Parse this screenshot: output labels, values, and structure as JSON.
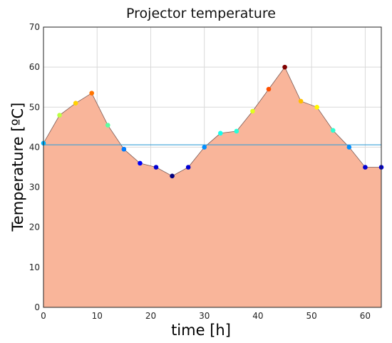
{
  "chart_data": {
    "type": "area",
    "title": "Projector temperature",
    "xlabel": "time [h]",
    "ylabel": "Temperature [ºC]",
    "xlim": [
      0,
      63
    ],
    "ylim": [
      0,
      70
    ],
    "xticks": [
      0,
      10,
      20,
      30,
      40,
      50,
      60
    ],
    "yticks": [
      0,
      10,
      20,
      30,
      40,
      50,
      60,
      70
    ],
    "grid": true,
    "fill_color": "#f9b59a",
    "reference_line": {
      "y": 40.6,
      "color": "#3aa0d8"
    },
    "colormap": "jet",
    "series": [
      {
        "x": [
          0,
          3,
          6,
          9,
          12,
          15,
          18,
          21,
          24,
          27,
          30,
          33,
          36,
          39,
          42,
          45,
          48,
          51,
          54,
          57,
          60,
          63
        ],
        "y": [
          41,
          48,
          51,
          53.5,
          45.5,
          39.5,
          36,
          35,
          32.8,
          35,
          40,
          43.5,
          44,
          49,
          54.5,
          60,
          51.5,
          50,
          44.2,
          40,
          35,
          35
        ]
      }
    ]
  }
}
